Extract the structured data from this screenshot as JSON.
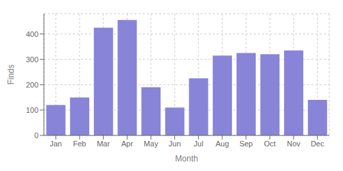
{
  "chart_data": {
    "type": "bar",
    "categories": [
      "Jan",
      "Feb",
      "Mar",
      "Apr",
      "May",
      "Jun",
      "Jul",
      "Aug",
      "Sep",
      "Oct",
      "Nov",
      "Dec"
    ],
    "values": [
      120,
      150,
      425,
      455,
      190,
      110,
      225,
      315,
      325,
      320,
      335,
      140
    ],
    "color": "#8884d8",
    "xlabel": "Month",
    "ylabel": "Finds",
    "ylim": [
      0,
      480
    ],
    "yticks": [
      0,
      100,
      200,
      300,
      400
    ],
    "grid": true
  }
}
